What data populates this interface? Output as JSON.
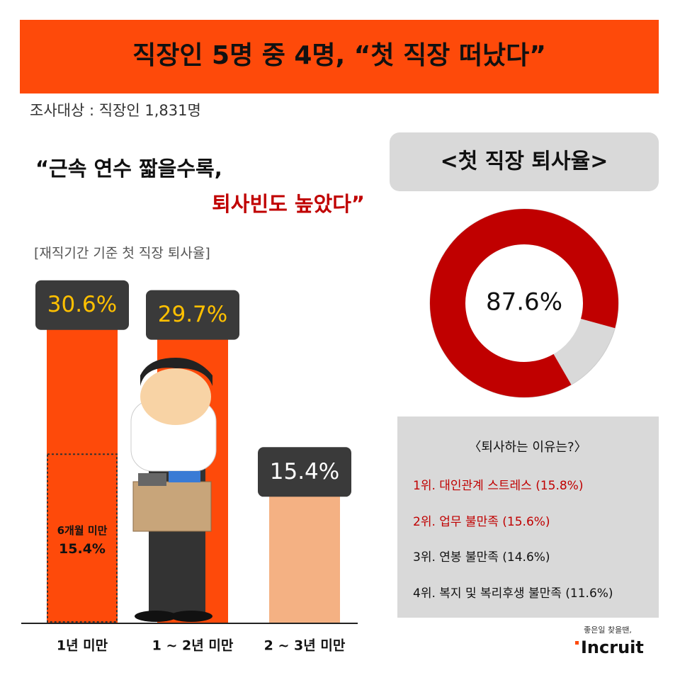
{
  "header": {
    "title": "직장인 5명 중 4명, “첫 직장 떠났다”",
    "subtitle": "조사대상 : 직장인 1,831명"
  },
  "quote": {
    "line1": "“근속 연수 짧을수록,",
    "line2": "퇴사빈도 높았다”"
  },
  "chart_data": [
    {
      "type": "bar",
      "title": "[재직기간 기준 첫 직장 퇴사율]",
      "categories": [
        "1년 미만",
        "1 ~ 2년 미만",
        "2 ~ 3년 미만"
      ],
      "values": [
        30.6,
        29.7,
        15.4
      ],
      "value_labels": [
        "30.6%",
        "29.7%",
        "15.4%"
      ],
      "colors": [
        "#fe4a0a",
        "#fe4a0a",
        "#f4b183"
      ],
      "sub": {
        "label": "6개월 미만",
        "value": 15.4,
        "value_label": "15.4%",
        "category": 0
      }
    },
    {
      "type": "donut",
      "title": "<첫 직장 퇴사율>",
      "values": [
        87.6
      ],
      "value_labels": [
        "87.6%"
      ],
      "color": "#c00000"
    }
  ],
  "reasons": {
    "title": "〈퇴사하는 이유는?〉",
    "items": [
      "1위. 대인관계 스트레스 (15.8%)",
      "2위. 업무 불만족 (15.6%)",
      "3위. 연봉 불만족 (14.6%)",
      "4위. 복지 및 복리후생 불만족 (11.6%)"
    ]
  },
  "logo": {
    "tagline": "좋은일 찾을땐,",
    "name": "Incruit"
  }
}
